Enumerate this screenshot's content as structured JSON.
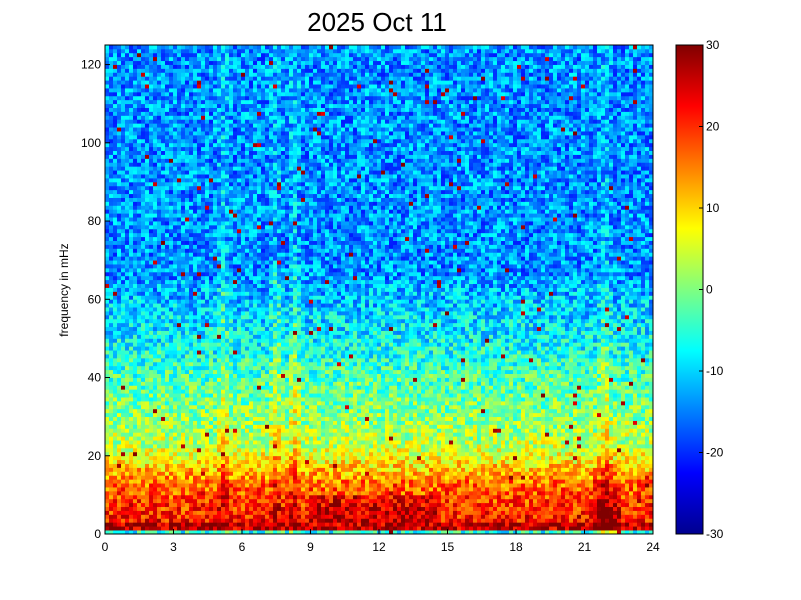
{
  "chart_data": {
    "type": "heatmap",
    "title": "2025 Oct 11",
    "xlabel": "",
    "ylabel": "frequency in mHz",
    "xlim": [
      0,
      24
    ],
    "ylim": [
      0,
      125
    ],
    "x_ticks": [
      "0",
      "3",
      "6",
      "9",
      "12",
      "15",
      "18",
      "21",
      "24"
    ],
    "y_ticks": [
      "0",
      "20",
      "40",
      "60",
      "80",
      "100",
      "120"
    ],
    "colorbar": {
      "colormap": "jet",
      "clim": [
        -30,
        30
      ],
      "ticks": [
        "30",
        "20",
        "10",
        "0",
        "-10",
        "-20",
        "-30"
      ]
    },
    "grid": false,
    "features": [
      {
        "x_range": [
          0,
          24
        ],
        "y_range": [
          2,
          14
        ],
        "value_db": 25
      },
      {
        "x_range": [
          21.3,
          22.6
        ],
        "y_range": [
          2,
          22
        ],
        "value_db": 24
      },
      {
        "x_range": [
          0,
          24
        ],
        "y_range": [
          20,
          45
        ],
        "value_db": 0
      },
      {
        "x_range": [
          0,
          24
        ],
        "y_range": [
          60,
          125
        ],
        "value_db": -15
      }
    ],
    "vertical_streaks_hours": [
      5.2,
      7.5,
      8.3,
      21.9
    ]
  }
}
